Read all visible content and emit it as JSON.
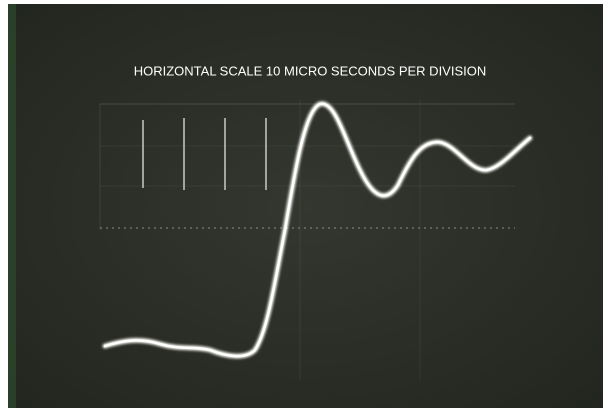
{
  "caption": "HORIZONTAL SCALE 10 MICRO SECONDS PER DIVISION"
}
